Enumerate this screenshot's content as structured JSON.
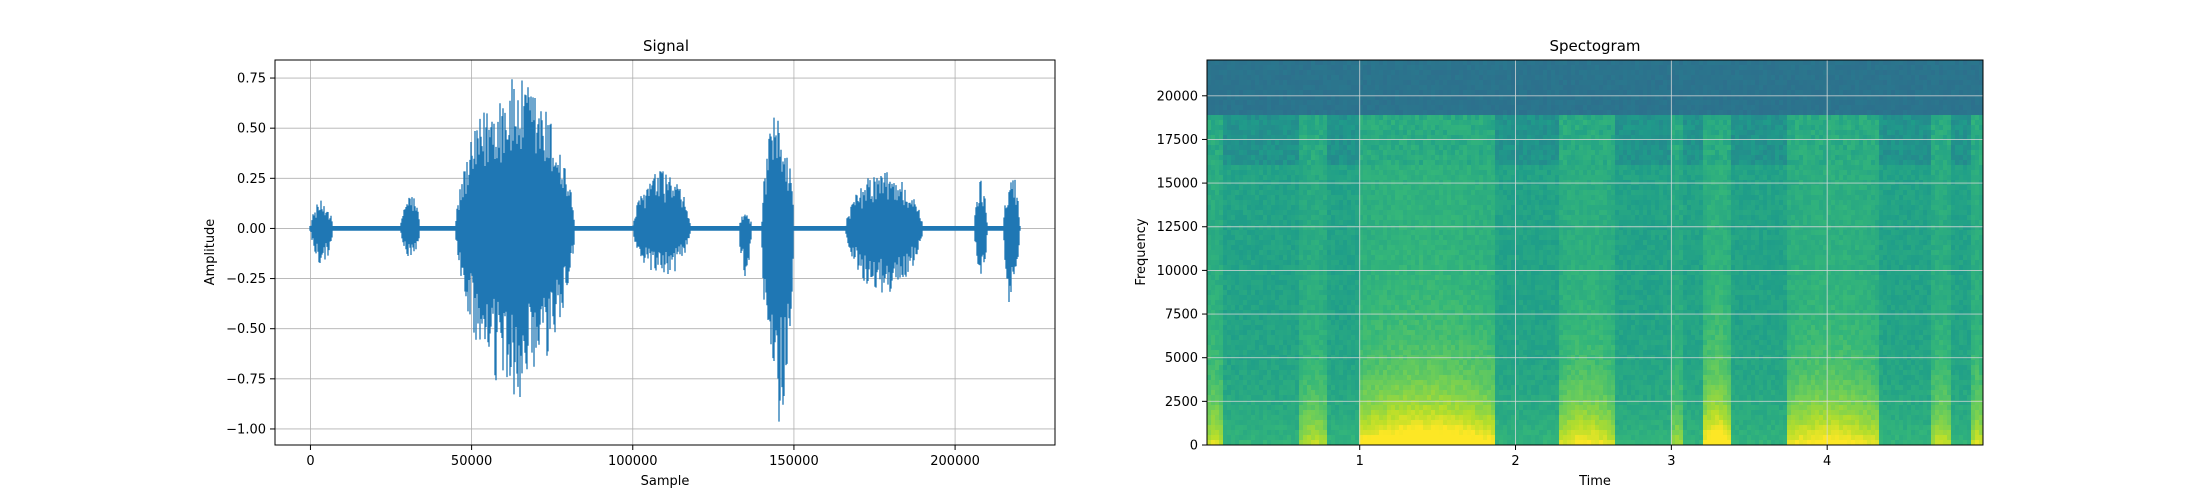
{
  "chart_data": [
    {
      "type": "line",
      "title": "Signal",
      "xlabel": "Sample",
      "ylabel": "Amplitude",
      "xlim": [
        -11000,
        231000
      ],
      "ylim": [
        -1.08,
        0.84
      ],
      "x_ticks": [
        0,
        50000,
        100000,
        150000,
        200000
      ],
      "x_tick_labels": [
        "0",
        "50000",
        "100000",
        "150000",
        "200000"
      ],
      "y_ticks": [
        -1.0,
        -0.75,
        -0.5,
        -0.25,
        0.0,
        0.25,
        0.5,
        0.75
      ],
      "y_tick_labels": [
        "−1.00",
        "−0.75",
        "−0.50",
        "−0.25",
        "0.00",
        "0.25",
        "0.50",
        "0.75"
      ],
      "grid": true,
      "line_color": "#1f77b4",
      "n_samples": 220000,
      "bursts": [
        {
          "start": 0,
          "end": 7000,
          "peak_pos": 0.14,
          "peak_neg": -0.18
        },
        {
          "start": 28000,
          "end": 34000,
          "peak_pos": 0.18,
          "peak_neg": -0.15
        },
        {
          "start": 45000,
          "end": 82000,
          "peak_pos": 0.75,
          "peak_neg": -0.86
        },
        {
          "start": 100000,
          "end": 118000,
          "peak_pos": 0.29,
          "peak_neg": -0.26
        },
        {
          "start": 133000,
          "end": 137000,
          "peak_pos": 0.08,
          "peak_neg": -0.24
        },
        {
          "start": 140000,
          "end": 150000,
          "peak_pos": 0.58,
          "peak_neg": -0.98
        },
        {
          "start": 166000,
          "end": 190000,
          "peak_pos": 0.29,
          "peak_neg": -0.33
        },
        {
          "start": 206000,
          "end": 210000,
          "peak_pos": 0.25,
          "peak_neg": -0.24
        },
        {
          "start": 215000,
          "end": 220000,
          "peak_pos": 0.3,
          "peak_neg": -0.4
        }
      ]
    },
    {
      "type": "heatmap",
      "title": "Spectogram",
      "xlabel": "Time",
      "ylabel": "Frequency",
      "xlim": [
        0.02,
        5.0
      ],
      "ylim": [
        0,
        22050
      ],
      "x_ticks": [
        1,
        2,
        3,
        4
      ],
      "x_tick_labels": [
        "1",
        "2",
        "3",
        "4"
      ],
      "y_ticks": [
        0,
        2500,
        5000,
        7500,
        10000,
        12500,
        15000,
        17500,
        20000
      ],
      "y_tick_labels": [
        "0",
        "2500",
        "5000",
        "7500",
        "10000",
        "12500",
        "15000",
        "17500",
        "20000"
      ],
      "grid": true,
      "colormap": [
        "#30678d",
        "#25858e",
        "#1f9e89",
        "#35b779",
        "#6ece58",
        "#b5de2b",
        "#fde725"
      ],
      "speech_segments": [
        {
          "start": 0.02,
          "end": 0.12,
          "strength": 0.65
        },
        {
          "start": 0.62,
          "end": 0.8,
          "strength": 0.55
        },
        {
          "start": 0.99,
          "end": 1.88,
          "strength": 1.0
        },
        {
          "start": 2.27,
          "end": 2.63,
          "strength": 0.75
        },
        {
          "start": 3.0,
          "end": 3.08,
          "strength": 0.45
        },
        {
          "start": 3.2,
          "end": 3.38,
          "strength": 0.95
        },
        {
          "start": 3.73,
          "end": 4.32,
          "strength": 0.82
        },
        {
          "start": 4.67,
          "end": 4.8,
          "strength": 0.6
        },
        {
          "start": 4.93,
          "end": 5.0,
          "strength": 0.65
        }
      ]
    }
  ]
}
